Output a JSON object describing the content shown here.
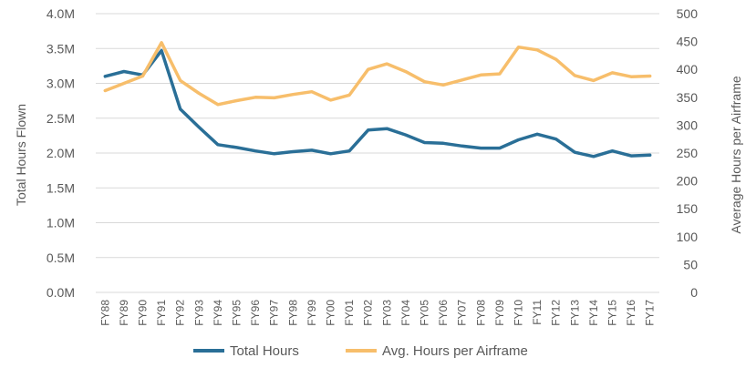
{
  "chart_data": {
    "type": "line",
    "categories": [
      "FY88",
      "FY89",
      "FY90",
      "FY91",
      "FY92",
      "FY93",
      "FY94",
      "FY95",
      "FY96",
      "FY97",
      "FY98",
      "FY99",
      "FY00",
      "FY01",
      "FY02",
      "FY03",
      "FY04",
      "FY05",
      "FY06",
      "FY07",
      "FY08",
      "FY09",
      "FY10",
      "FY11",
      "FY12",
      "FY13",
      "FY14",
      "FY15",
      "FY16",
      "FY17"
    ],
    "y_left": {
      "label": "Total Hours Flown",
      "ylim": [
        0,
        4.0
      ],
      "ticks": [
        "0.0M",
        "0.5M",
        "1.0M",
        "1.5M",
        "2.0M",
        "2.5M",
        "3.0M",
        "3.5M",
        "4.0M"
      ],
      "unit": "million hours"
    },
    "y_right": {
      "label": "Average Hours per Airframe",
      "ylim": [
        0,
        500
      ],
      "ticks": [
        "0",
        "50",
        "100",
        "150",
        "200",
        "250",
        "300",
        "350",
        "400",
        "450",
        "500"
      ]
    },
    "series": [
      {
        "name": "Total Hours",
        "axis": "left",
        "color": "#2A6F97",
        "values": [
          3.1,
          3.17,
          3.12,
          3.47,
          2.63,
          2.37,
          2.12,
          2.08,
          2.03,
          1.99,
          2.02,
          2.04,
          1.99,
          2.03,
          2.33,
          2.35,
          2.26,
          2.15,
          2.14,
          2.1,
          2.07,
          2.07,
          2.19,
          2.27,
          2.2,
          2.01,
          1.95,
          2.03,
          1.96,
          1.97
        ]
      },
      {
        "name": "Avg. Hours per Airframe",
        "axis": "right",
        "color": "#F7BE6B",
        "values": [
          362,
          375,
          388,
          448,
          380,
          357,
          337,
          344,
          350,
          349,
          355,
          360,
          345,
          354,
          400,
          410,
          396,
          378,
          372,
          381,
          390,
          392,
          440,
          435,
          418,
          389,
          380,
          394,
          387,
          388
        ]
      }
    ],
    "grid": true,
    "legend": "bottom"
  }
}
